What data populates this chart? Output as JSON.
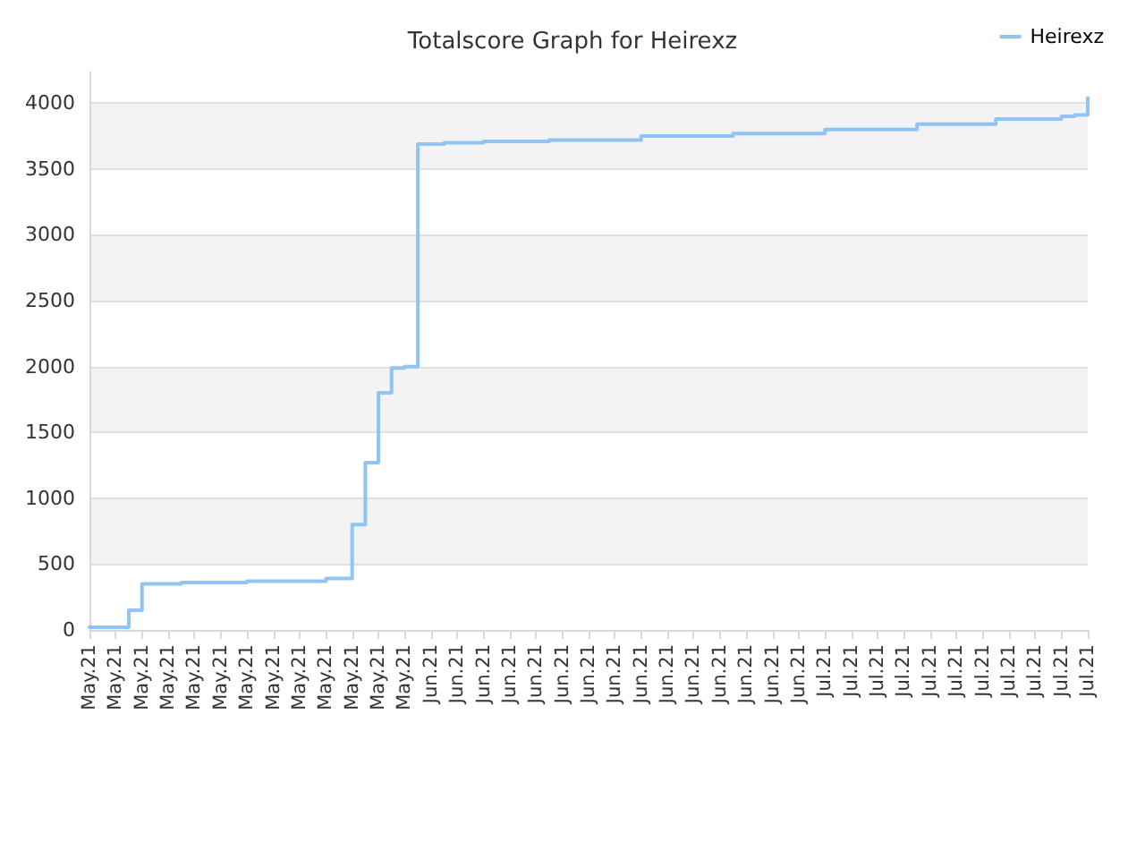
{
  "chart_data": {
    "type": "step",
    "title": "Totalscore Graph for Heirexz",
    "categories": [
      "May.21",
      null,
      "May.21",
      null,
      "May.21",
      null,
      "May.21",
      null,
      "May.21",
      null,
      "May.21",
      null,
      "May.21",
      null,
      "May.21",
      null,
      "May.21",
      null,
      "May.21",
      null,
      "May.21",
      null,
      "May.21",
      null,
      "May.21",
      null,
      "Jun.21",
      null,
      "Jun.21",
      null,
      "Jun.21",
      null,
      "Jun.21",
      null,
      "Jun.21",
      null,
      "Jun.21",
      null,
      "Jun.21",
      null,
      "Jun.21",
      null,
      "Jun.21",
      null,
      "Jun.21",
      null,
      "Jun.21",
      null,
      "Jun.21",
      null,
      "Jun.21",
      null,
      "Jun.21",
      null,
      "Jun.21",
      null,
      "Jul.21",
      null,
      "Jul.21",
      null,
      "Jul.21",
      null,
      "Jul.21",
      null,
      "Jul.21",
      null,
      "Jul.21",
      null,
      "Jul.21",
      null,
      "Jul.21",
      null,
      "Jul.21",
      null,
      "Jul.21",
      null,
      "Jul.21"
    ],
    "ylim": [
      0,
      4240
    ],
    "yticks": [
      0,
      500,
      1000,
      1500,
      2000,
      2500,
      3000,
      3500,
      4000
    ],
    "grid": "y",
    "legend": "top right",
    "marker": "none",
    "line_style": "solid",
    "series": [
      {
        "name": "Heirexz",
        "color": "#90c4f4",
        "values": [
          20,
          20,
          20,
          150,
          350,
          350,
          350,
          360,
          360,
          360,
          360,
          360,
          370,
          370,
          370,
          370,
          370,
          370,
          390,
          390,
          800,
          1270,
          1800,
          1990,
          2000,
          3690,
          3690,
          3700,
          3700,
          3700,
          3710,
          3710,
          3710,
          3710,
          3710,
          3720,
          3720,
          3720,
          3720,
          3720,
          3720,
          3720,
          3750,
          3750,
          3750,
          3750,
          3750,
          3750,
          3750,
          3770,
          3770,
          3770,
          3770,
          3770,
          3770,
          3770,
          3800,
          3800,
          3800,
          3800,
          3800,
          3800,
          3800,
          3840,
          3840,
          3840,
          3840,
          3840,
          3840,
          3880,
          3880,
          3880,
          3880,
          3880,
          3900,
          3910,
          4040
        ]
      }
    ]
  }
}
